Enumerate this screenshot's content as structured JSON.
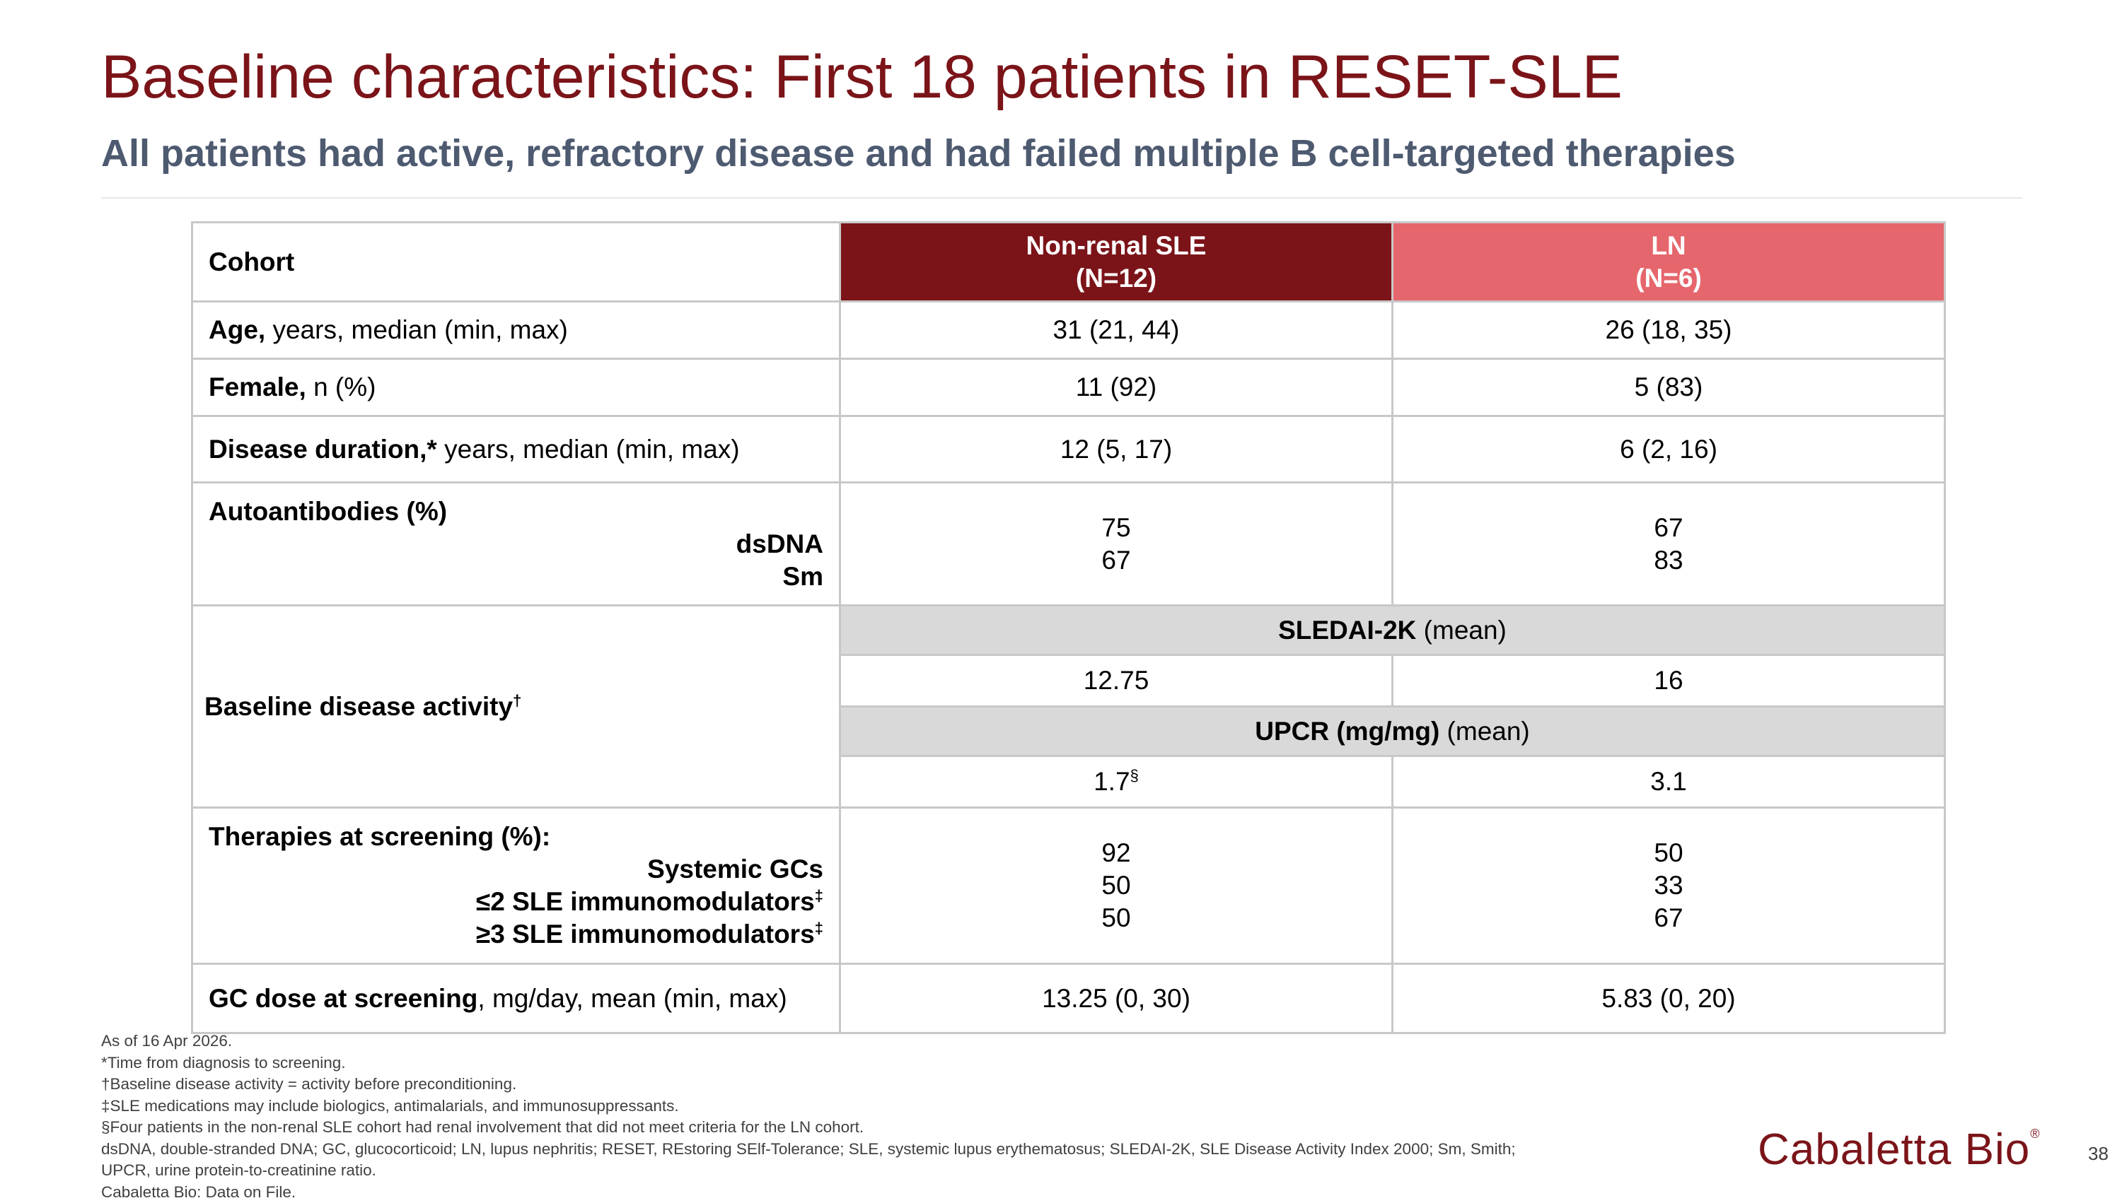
{
  "title": "Baseline characteristics: First 18 patients in RESET-SLE",
  "subtitle": "All patients had active, refractory disease and had failed multiple B cell-targeted therapies",
  "colors": {
    "brand": "#7b1419",
    "ln_header": "#e5666c",
    "subheader_gray": "#d9d9d9"
  },
  "table": {
    "cohort_label": "Cohort",
    "col1": {
      "name": "Non-renal SLE",
      "n": "(N=12)"
    },
    "col2": {
      "name": "LN",
      "n": "(N=6)"
    },
    "age": {
      "bold": "Age,",
      "rest": " years, median (min, max)",
      "v1": "31 (21, 44)",
      "v2": "26 (18, 35)"
    },
    "female": {
      "bold": "Female,",
      "rest": " n (%)",
      "v1": "11 (92)",
      "v2": "5 (83)"
    },
    "duration": {
      "bold": "Disease duration,*",
      "rest": " years, median (min, max)",
      "v1": "12 (5, 17)",
      "v2": "6 (2, 16)"
    },
    "autoantibodies": {
      "label": "Autoantibodies (%)",
      "sub1": "dsDNA",
      "sub2": "Sm",
      "v1a": "75",
      "v1b": "67",
      "v2a": "67",
      "v2b": "83"
    },
    "activity": {
      "label": "Baseline disease activity",
      "label_sup": "†",
      "sledai_bold": "SLEDAI-2K",
      "sledai_rest": " (mean)",
      "sledai_v1": "12.75",
      "sledai_v2": "16",
      "upcr_bold": "UPCR (mg/mg)",
      "upcr_rest": " (mean)",
      "upcr_v1": "1.7",
      "upcr_v1_sup": "§",
      "upcr_v2": "3.1"
    },
    "therapies": {
      "label": "Therapies at screening (%):",
      "sub1": "Systemic GCs",
      "sub2": "≤2 SLE immunomodulators",
      "sub2_sup": "‡",
      "sub3": "≥3 SLE immunomodulators",
      "sub3_sup": "‡",
      "v1a": "92",
      "v1b": "50",
      "v1c": "50",
      "v2a": "50",
      "v2b": "33",
      "v2c": "67"
    },
    "gc_dose": {
      "bold": "GC dose at screening",
      "rest": ", mg/day, mean (min, max)",
      "v1": "13.25 (0, 30)",
      "v2": "5.83 (0, 20)"
    }
  },
  "footnotes": [
    "As of 16 Apr 2026.",
    "*Time from diagnosis to screening.",
    "†Baseline disease activity = activity before preconditioning.",
    "‡SLE medications may include biologics, antimalarials, and immunosuppressants.",
    "§Four patients in the non-renal SLE cohort had renal involvement that did not meet criteria for the LN cohort.",
    "dsDNA, double-stranded DNA; GC, glucocorticoid; LN, lupus nephritis; RESET, REstoring SElf-Tolerance; SLE, systemic lupus erythematosus; SLEDAI-2K, SLE Disease Activity Index 2000; Sm, Smith;",
    "UPCR, urine protein-to-creatinine ratio.",
    "Cabaletta Bio: Data on File."
  ],
  "logo": {
    "text": "Cabaletta Bio",
    "reg": "®"
  },
  "page_number": "38"
}
